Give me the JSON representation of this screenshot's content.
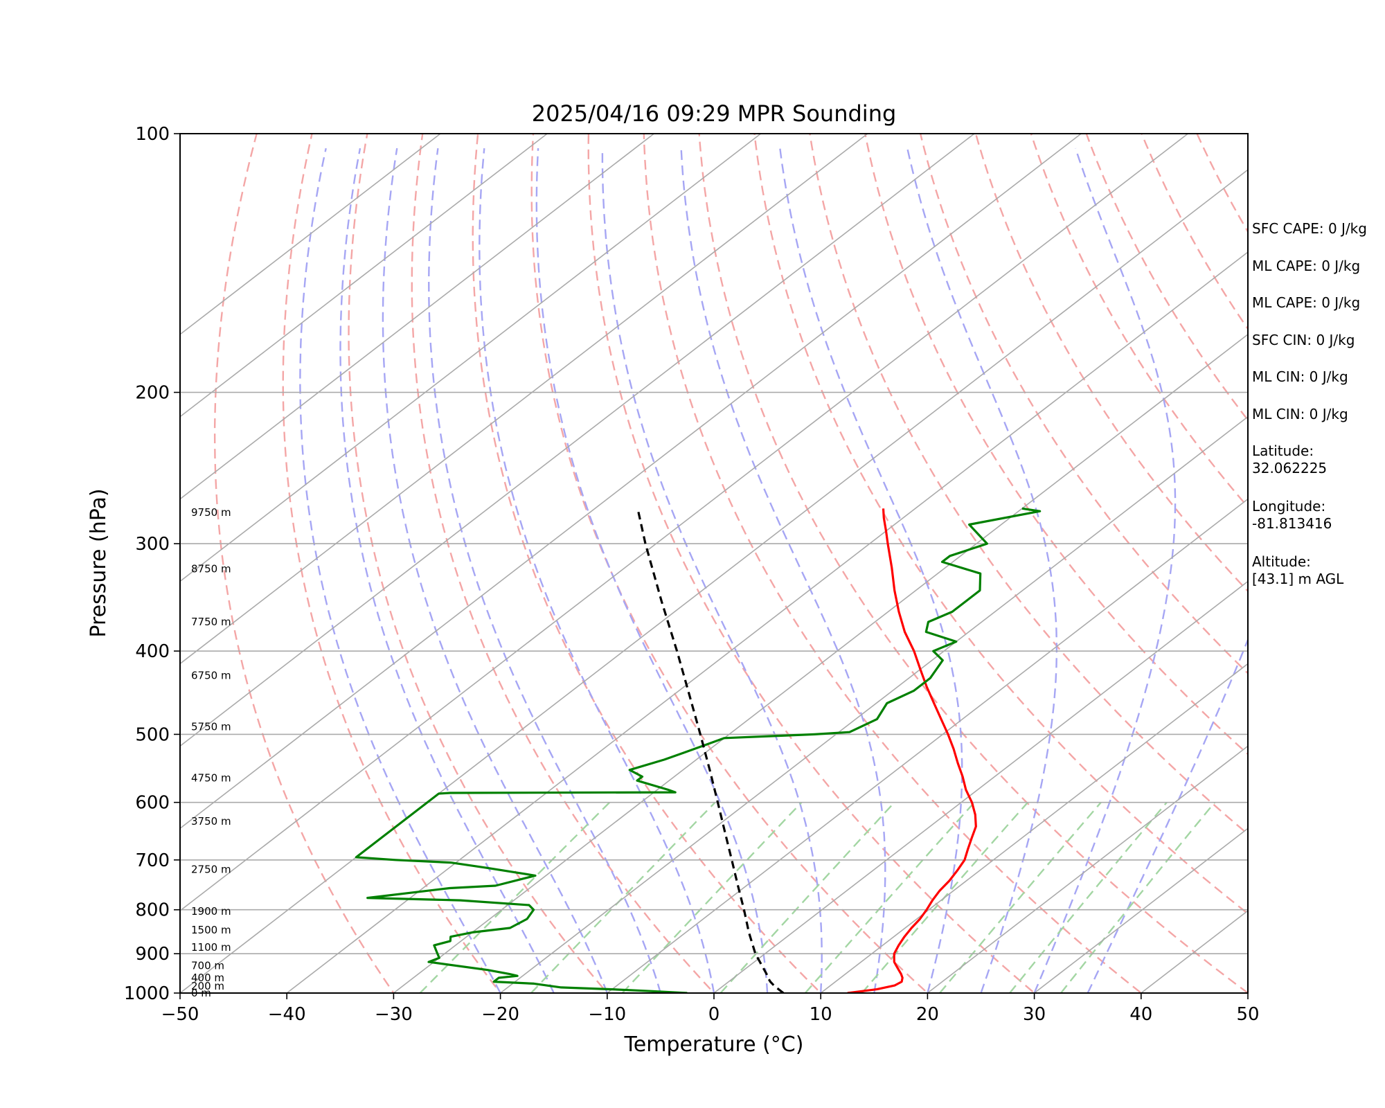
{
  "chart_data": {
    "type": "line",
    "title": "2025/04/16 09:29 MPR Sounding",
    "xlabel": "Temperature (°C)",
    "ylabel": "Pressure (hPa)",
    "xlim": [
      -50,
      50
    ],
    "ylim": [
      1000,
      100
    ],
    "y_scale": "log",
    "skew": true,
    "x_ticks": [
      -50,
      -40,
      -30,
      -20,
      -10,
      0,
      10,
      20,
      30,
      40,
      50
    ],
    "x_tick_labels": [
      "−50",
      "−40",
      "−30",
      "−20",
      "−10",
      "0",
      "10",
      "20",
      "30",
      "40",
      "50"
    ],
    "y_ticks": [
      1000,
      900,
      800,
      700,
      600,
      500,
      400,
      300,
      200,
      100
    ],
    "y_tick_labels": [
      "1000",
      "900",
      "800",
      "700",
      "600",
      "500",
      "400",
      "300",
      "200",
      "100"
    ],
    "grid": true,
    "isobars": [
      1000,
      900,
      800,
      700,
      600,
      500,
      400,
      300,
      200
    ],
    "isotherms": [
      -130,
      -120,
      -110,
      -100,
      -90,
      -80,
      -70,
      -60,
      -50,
      -40,
      -30,
      -20,
      -10,
      0,
      10,
      20,
      30,
      40,
      50
    ],
    "dry_adiabats_theta_c": [
      -30,
      -20,
      -10,
      0,
      10,
      20,
      30,
      40,
      50,
      60,
      70,
      80,
      90,
      100,
      110,
      120,
      130,
      140,
      150,
      160,
      170,
      180,
      190,
      200
    ],
    "moist_adiabats_start_c": [
      -20,
      -15,
      -10,
      -5,
      0,
      5,
      10,
      15,
      20,
      25,
      30,
      35
    ],
    "mixing_ratio_lines_gkg": [
      0.4,
      1,
      2,
      4,
      7,
      10,
      16,
      24,
      32
    ],
    "colors": {
      "temperature": "#ff0000",
      "dewpoint": "#008000",
      "parcel": "#000000",
      "isotherm": "#aaaaaa",
      "isobar": "#aaaaaa",
      "dry_adiabat": "#f4a6a6",
      "moist_adiabat": "#a6a6f4",
      "mixing_ratio": "#a3d6a3"
    },
    "series": [
      {
        "key": "temperature",
        "points": [
          [
            1000,
            12.5
          ],
          [
            990,
            14.8
          ],
          [
            980,
            16.0
          ],
          [
            970,
            16.2
          ],
          [
            960,
            15.8
          ],
          [
            950,
            15.2
          ],
          [
            940,
            14.5
          ],
          [
            930,
            13.8
          ],
          [
            920,
            13.1
          ],
          [
            910,
            12.6
          ],
          [
            900,
            12.1
          ],
          [
            880,
            11.5
          ],
          [
            860,
            11.0
          ],
          [
            840,
            10.6
          ],
          [
            820,
            10.3
          ],
          [
            800,
            9.8
          ],
          [
            780,
            9.2
          ],
          [
            760,
            8.7
          ],
          [
            740,
            8.4
          ],
          [
            720,
            7.9
          ],
          [
            700,
            7.3
          ],
          [
            680,
            6.3
          ],
          [
            660,
            5.3
          ],
          [
            640,
            4.3
          ],
          [
            620,
            2.8
          ],
          [
            600,
            1.0
          ],
          [
            580,
            -1.1
          ],
          [
            560,
            -3.0
          ],
          [
            540,
            -5.1
          ],
          [
            520,
            -7.2
          ],
          [
            500,
            -9.5
          ],
          [
            480,
            -12.0
          ],
          [
            460,
            -14.6
          ],
          [
            440,
            -17.3
          ],
          [
            420,
            -20.0
          ],
          [
            400,
            -22.8
          ],
          [
            380,
            -26.0
          ],
          [
            360,
            -29.0
          ],
          [
            340,
            -32.0
          ],
          [
            320,
            -35.0
          ],
          [
            300,
            -38.3
          ],
          [
            290,
            -40.0
          ],
          [
            280,
            -41.8
          ],
          [
            273,
            -43.0
          ]
        ]
      },
      {
        "key": "dewpoint",
        "points": [
          [
            1000,
            -2.5
          ],
          [
            995,
            -6.0
          ],
          [
            990,
            -10.0
          ],
          [
            985,
            -15.0
          ],
          [
            975,
            -18.0
          ],
          [
            970,
            -22.0
          ],
          [
            960,
            -22.0
          ],
          [
            955,
            -20.5
          ],
          [
            950,
            -21.5
          ],
          [
            940,
            -24.0
          ],
          [
            920,
            -30.5
          ],
          [
            910,
            -30.0
          ],
          [
            895,
            -31.0
          ],
          [
            880,
            -32.0
          ],
          [
            870,
            -31.0
          ],
          [
            860,
            -31.5
          ],
          [
            850,
            -30.0
          ],
          [
            840,
            -27.0
          ],
          [
            820,
            -26.5
          ],
          [
            800,
            -27.0
          ],
          [
            790,
            -28.0
          ],
          [
            780,
            -35.0
          ],
          [
            775,
            -44.0
          ],
          [
            755,
            -37.5
          ],
          [
            750,
            -33.5
          ],
          [
            730,
            -31.0
          ],
          [
            715,
            -36.5
          ],
          [
            705,
            -40.5
          ],
          [
            700,
            -46.0
          ],
          [
            695,
            -50.0
          ],
          [
            586,
            -50.0
          ],
          [
            585,
            -49.0
          ],
          [
            584,
            -28.0
          ],
          [
            580,
            -29.0
          ],
          [
            566,
            -33.0
          ],
          [
            560,
            -33.0
          ],
          [
            550,
            -35.0
          ],
          [
            535,
            -33.0
          ],
          [
            525,
            -32.0
          ],
          [
            515,
            -31.0
          ],
          [
            505,
            -30.0
          ],
          [
            500,
            -22.0
          ],
          [
            497,
            -19.0
          ],
          [
            480,
            -18.0
          ],
          [
            460,
            -19.0
          ],
          [
            445,
            -18.0
          ],
          [
            430,
            -18.0
          ],
          [
            410,
            -19.0
          ],
          [
            400,
            -21.0
          ],
          [
            390,
            -20.0
          ],
          [
            380,
            -24.0
          ],
          [
            370,
            -25.0
          ],
          [
            360,
            -24.0
          ],
          [
            340,
            -24.0
          ],
          [
            325,
            -26.0
          ],
          [
            315,
            -31.0
          ],
          [
            310,
            -31.0
          ],
          [
            300,
            -29.0
          ],
          [
            285,
            -33.0
          ],
          [
            275,
            -28.0
          ],
          [
            273,
            -30.0
          ]
        ]
      },
      {
        "key": "parcel",
        "points": [
          [
            1000,
            6.5
          ],
          [
            990,
            5.6
          ],
          [
            980,
            4.7
          ],
          [
            970,
            3.9
          ],
          [
            960,
            3.2
          ],
          [
            950,
            2.6
          ],
          [
            900,
            -0.9
          ],
          [
            850,
            -4.1
          ],
          [
            800,
            -7.3
          ],
          [
            750,
            -10.8
          ],
          [
            700,
            -14.5
          ],
          [
            650,
            -18.5
          ],
          [
            600,
            -22.8
          ],
          [
            550,
            -27.5
          ],
          [
            500,
            -32.7
          ],
          [
            450,
            -38.5
          ],
          [
            400,
            -45.0
          ],
          [
            350,
            -52.5
          ],
          [
            300,
            -61.0
          ],
          [
            273,
            -66.0
          ]
        ]
      }
    ],
    "height_labels": [
      {
        "pressure": 1000,
        "label": "0 m"
      },
      {
        "pressure": 982,
        "label": "200 m"
      },
      {
        "pressure": 960,
        "label": "400 m"
      },
      {
        "pressure": 929,
        "label": "700 m"
      },
      {
        "pressure": 885,
        "label": "1100 m"
      },
      {
        "pressure": 845,
        "label": "1500 m"
      },
      {
        "pressure": 803,
        "label": "1900 m"
      },
      {
        "pressure": 718,
        "label": "2750 m"
      },
      {
        "pressure": 631,
        "label": "3750 m"
      },
      {
        "pressure": 562,
        "label": "4750 m"
      },
      {
        "pressure": 490,
        "label": "5750 m"
      },
      {
        "pressure": 427,
        "label": "6750 m"
      },
      {
        "pressure": 370,
        "label": "7750 m"
      },
      {
        "pressure": 321,
        "label": "8750 m"
      },
      {
        "pressure": 276,
        "label": "9750 m"
      }
    ]
  },
  "info_panel": {
    "sfc_cape": "SFC CAPE: 0 J/kg",
    "ml_cape_1": "ML CAPE: 0 J/kg",
    "ml_cape_2": "ML CAPE: 0 J/kg",
    "sfc_cin": "SFC CIN: 0 J/kg",
    "ml_cin_1": "ML CIN: 0 J/kg",
    "ml_cin_2": "ML CIN: 0 J/kg",
    "latitude_label": "Latitude:",
    "latitude_value": "32.062225",
    "longitude_label": "Longitude:",
    "longitude_value": "-81.813416",
    "altitude_label": "Altitude:",
    "altitude_value": "[43.1] m AGL"
  }
}
